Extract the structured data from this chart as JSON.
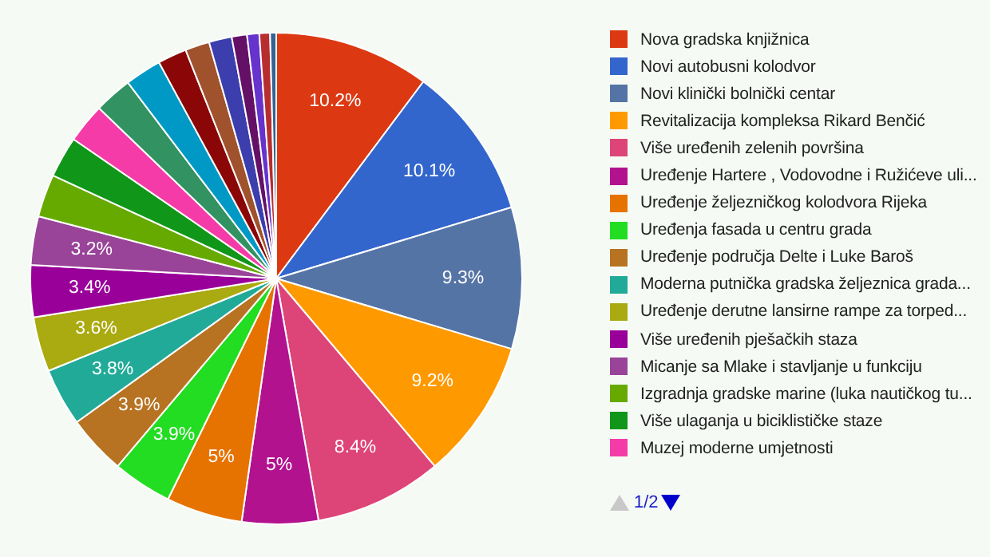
{
  "chart_data": {
    "type": "pie",
    "categories": [
      "Nova gradska knjižnica",
      "Novi autobusni kolodvor",
      "Novi klinički bolnički centar",
      "Revitalizacija kompleksa Rikard Benčić",
      "Više uređenih zelenih površina",
      "Uređenje Hartere , Vodovodne i Ružićeve uli...",
      "Uređenje željezničkog kolodvora Rijeka",
      "Uređenja fasada u centru grada",
      "Uređenje područja Delte i Luke Baroš",
      "Moderna putnička gradska željeznica grada...",
      "Uređenje derutne lansirne rampe za torped...",
      "Više uređenih pješačkih staza",
      "Micanje sa Mlake i stavljanje u funkciju",
      "Izgradnja gradske marine (luka nautičkog tu...",
      "Više ulaganja u biciklističke staze",
      "Muzej moderne umjetnosti",
      null,
      null,
      null,
      null,
      null,
      null,
      null,
      null,
      null
    ],
    "values": [
      10.2,
      10.1,
      9.3,
      9.2,
      8.4,
      5,
      5,
      3.9,
      3.9,
      3.8,
      3.6,
      3.4,
      3.2,
      2.8,
      2.7,
      2.6,
      2.5,
      2.4,
      1.9,
      1.6,
      1.5,
      1.0,
      0.8,
      0.7,
      0.4
    ],
    "colors": [
      "#dc3912",
      "#3366cc",
      "#5574a6",
      "#ff9900",
      "#dd4477",
      "#b3128f",
      "#e67300",
      "#22dd22",
      "#b77322",
      "#22aa99",
      "#aaaa11",
      "#990099",
      "#994499",
      "#66aa00",
      "#109618",
      "#f43ba7",
      "#329262",
      "#0099c6",
      "#8b0707",
      "#a0522d",
      "#3b3eac",
      "#651067",
      "#6633cc",
      "#b82e2e",
      "#316395"
    ],
    "value_labels": [
      "10.2%",
      "10.1%",
      "9.3%",
      "9.2%",
      "8.4%",
      "5%",
      "5%",
      "3.9%",
      "3.9%",
      "3.8%",
      "3.6%",
      "3.4%",
      "3.2%",
      null,
      null,
      null,
      null,
      null,
      null,
      null,
      null,
      null,
      null,
      null,
      null
    ],
    "legend": "right",
    "annotations": [
      "1/2"
    ]
  }
}
